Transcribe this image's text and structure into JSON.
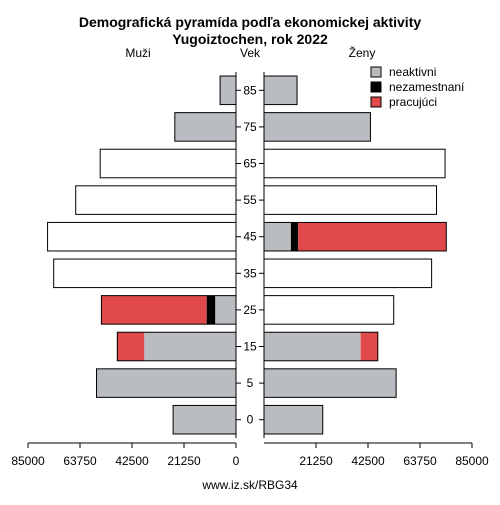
{
  "chart_data": {
    "type": "bar",
    "title": "Demografická pyramída podľa ekonomickej aktivity",
    "subtitle": "Yugoiztochen, rok 2022",
    "left_label": "Muži",
    "center_label": "Vek",
    "right_label": "Ženy",
    "source": "www.iz.sk/RBG34",
    "categories": [
      "0",
      "5",
      "15",
      "25",
      "35",
      "45",
      "55",
      "65",
      "75",
      "85"
    ],
    "xlim": [
      0,
      85000
    ],
    "x_ticks": [
      "85000",
      "63750",
      "42500",
      "21250",
      "0",
      "21250",
      "42500",
      "63750",
      "85000"
    ],
    "legend": {
      "placement": "top-right",
      "entries": [
        {
          "key": "neaktivni",
          "label": "neaktivni",
          "color": "#b9bcc0"
        },
        {
          "key": "nezamestnani",
          "label": "nezamestnaní",
          "color": "#000000"
        },
        {
          "key": "pracujuci",
          "label": "pracujúci",
          "color": "#e04a4a"
        }
      ]
    },
    "colors": {
      "neaktivni": "#b9bcc0",
      "nezamestnani": "#000000",
      "pracujuci": "#e04a4a",
      "unsplit": "#ffffff"
    },
    "note": "",
    "men": [
      {
        "age": "0",
        "total": 25700,
        "neaktivni": 25700,
        "nezamestnani": 0,
        "pracujuci": 0
      },
      {
        "age": "5",
        "total": 57000,
        "neaktivni": 57000,
        "nezamestnani": 0,
        "pracujuci": 0
      },
      {
        "age": "15",
        "total": 48500,
        "neaktivni": 37500,
        "nezamestnani": 0,
        "pracujuci": 11000
      },
      {
        "age": "25",
        "total": 55000,
        "neaktivni": 8500,
        "nezamestnani": 3500,
        "pracujuci": 43000
      },
      {
        "age": "35",
        "total": 74500,
        "neaktivni": null,
        "nezamestnani": null,
        "pracujuci": null
      },
      {
        "age": "45",
        "total": 77000,
        "neaktivni": null,
        "nezamestnani": null,
        "pracujuci": null
      },
      {
        "age": "55",
        "total": 65500,
        "neaktivni": null,
        "nezamestnani": null,
        "pracujuci": null
      },
      {
        "age": "65",
        "total": 55500,
        "neaktivni": null,
        "nezamestnani": null,
        "pracujuci": null
      },
      {
        "age": "75",
        "total": 25000,
        "neaktivni": 25000,
        "nezamestnani": 0,
        "pracujuci": 0
      },
      {
        "age": "85",
        "total": 6500,
        "neaktivni": 6500,
        "nezamestnani": 0,
        "pracujuci": 0
      }
    ],
    "women": [
      {
        "age": "0",
        "total": 24000,
        "neaktivni": 24000,
        "nezamestnani": 0,
        "pracujuci": 0
      },
      {
        "age": "5",
        "total": 54000,
        "neaktivni": 54000,
        "nezamestnani": 0,
        "pracujuci": 0
      },
      {
        "age": "15",
        "total": 46500,
        "neaktivni": 39500,
        "nezamestnani": 0,
        "pracujuci": 7000
      },
      {
        "age": "25",
        "total": 53000,
        "neaktivni": null,
        "nezamestnani": null,
        "pracujuci": null
      },
      {
        "age": "35",
        "total": 68500,
        "neaktivni": null,
        "nezamestnani": null,
        "pracujuci": null
      },
      {
        "age": "45",
        "total": 74500,
        "neaktivni": 11000,
        "nezamestnani": 3000,
        "pracujuci": 60500
      },
      {
        "age": "55",
        "total": 70500,
        "neaktivni": null,
        "nezamestnani": null,
        "pracujuci": null
      },
      {
        "age": "65",
        "total": 74000,
        "neaktivni": null,
        "nezamestnani": null,
        "pracujuci": null
      },
      {
        "age": "75",
        "total": 43500,
        "neaktivni": 43500,
        "nezamestnani": 0,
        "pracujuci": 0
      },
      {
        "age": "85",
        "total": 13500,
        "neaktivni": 13500,
        "nezamestnani": 0,
        "pracujuci": 0
      }
    ]
  }
}
